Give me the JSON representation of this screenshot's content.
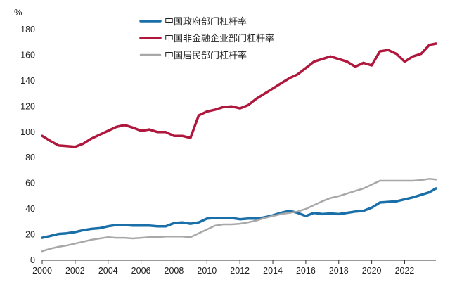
{
  "chart_data": {
    "type": "line",
    "title": "",
    "xlabel": "",
    "ylabel": "%",
    "ylim": [
      0,
      180
    ],
    "xlim": [
      2000,
      2023.9
    ],
    "y_ticks": [
      0,
      20,
      40,
      60,
      80,
      100,
      120,
      140,
      160,
      180
    ],
    "x_ticks": [
      2000,
      2002,
      2004,
      2006,
      2008,
      2010,
      2012,
      2014,
      2016,
      2018,
      2020,
      2022
    ],
    "grid": false,
    "legend_position": "top-center",
    "series": [
      {
        "name": "中国政府部门杠杆率",
        "color": "#1a6fa8",
        "line_width": 3.5,
        "points": [
          [
            2000.0,
            17.5
          ],
          [
            2000.5,
            19
          ],
          [
            2001.0,
            20.5
          ],
          [
            2001.5,
            21
          ],
          [
            2002.0,
            22
          ],
          [
            2002.5,
            23.5
          ],
          [
            2003.0,
            24.5
          ],
          [
            2003.5,
            25
          ],
          [
            2004.0,
            26.5
          ],
          [
            2004.5,
            27.5
          ],
          [
            2005.0,
            27.5
          ],
          [
            2005.5,
            27
          ],
          [
            2006.0,
            27
          ],
          [
            2006.5,
            27
          ],
          [
            2007.0,
            26.5
          ],
          [
            2007.5,
            26.5
          ],
          [
            2008.0,
            29
          ],
          [
            2008.5,
            29.5
          ],
          [
            2009.0,
            28.5
          ],
          [
            2009.5,
            29.5
          ],
          [
            2010.0,
            32.5
          ],
          [
            2010.5,
            33
          ],
          [
            2011.0,
            33
          ],
          [
            2011.5,
            33
          ],
          [
            2012.0,
            32
          ],
          [
            2012.5,
            32.5
          ],
          [
            2013.0,
            32.5
          ],
          [
            2013.5,
            33.5
          ],
          [
            2014.0,
            35
          ],
          [
            2014.5,
            37
          ],
          [
            2015.0,
            38.5
          ],
          [
            2015.5,
            37
          ],
          [
            2016.0,
            34.5
          ],
          [
            2016.5,
            37
          ],
          [
            2017.0,
            36
          ],
          [
            2017.5,
            36.5
          ],
          [
            2018.0,
            36
          ],
          [
            2018.5,
            37
          ],
          [
            2019.0,
            38
          ],
          [
            2019.5,
            38.5
          ],
          [
            2020.0,
            41
          ],
          [
            2020.5,
            45
          ],
          [
            2021.0,
            45.5
          ],
          [
            2021.5,
            46
          ],
          [
            2022.0,
            47.5
          ],
          [
            2022.5,
            49
          ],
          [
            2023.0,
            51
          ],
          [
            2023.5,
            53
          ],
          [
            2023.9,
            56
          ]
        ]
      },
      {
        "name": "中国非金融企业部门杠杆率",
        "color": "#b0173c",
        "line_width": 3.5,
        "points": [
          [
            2000.0,
            97
          ],
          [
            2000.5,
            93
          ],
          [
            2001.0,
            89.5
          ],
          [
            2001.5,
            89
          ],
          [
            2002.0,
            88.5
          ],
          [
            2002.5,
            91
          ],
          [
            2003.0,
            95
          ],
          [
            2003.5,
            98
          ],
          [
            2004.0,
            101
          ],
          [
            2004.5,
            104
          ],
          [
            2005.0,
            105.5
          ],
          [
            2005.5,
            103.5
          ],
          [
            2006.0,
            101
          ],
          [
            2006.5,
            102
          ],
          [
            2007.0,
            100
          ],
          [
            2007.5,
            100
          ],
          [
            2008.0,
            97
          ],
          [
            2008.5,
            97
          ],
          [
            2009.0,
            95.5
          ],
          [
            2009.5,
            113
          ],
          [
            2010.0,
            116
          ],
          [
            2010.5,
            117.5
          ],
          [
            2011.0,
            119.5
          ],
          [
            2011.5,
            120
          ],
          [
            2012.0,
            118.5
          ],
          [
            2012.5,
            121
          ],
          [
            2013.0,
            126
          ],
          [
            2013.5,
            130
          ],
          [
            2014.0,
            134
          ],
          [
            2014.5,
            138
          ],
          [
            2015.0,
            142
          ],
          [
            2015.5,
            145
          ],
          [
            2016.0,
            150
          ],
          [
            2016.5,
            155
          ],
          [
            2017.0,
            157
          ],
          [
            2017.5,
            159
          ],
          [
            2018.0,
            157
          ],
          [
            2018.5,
            155
          ],
          [
            2019.0,
            151
          ],
          [
            2019.5,
            154
          ],
          [
            2020.0,
            152
          ],
          [
            2020.5,
            163
          ],
          [
            2021.0,
            164
          ],
          [
            2021.5,
            161
          ],
          [
            2022.0,
            155
          ],
          [
            2022.5,
            159
          ],
          [
            2023.0,
            161
          ],
          [
            2023.5,
            168
          ],
          [
            2023.9,
            169
          ]
        ]
      },
      {
        "name": "中国居民部门杠杆率",
        "color": "#a8a8a8",
        "line_width": 2.5,
        "points": [
          [
            2000.0,
            7
          ],
          [
            2000.5,
            9
          ],
          [
            2001.0,
            10.5
          ],
          [
            2001.5,
            11.5
          ],
          [
            2002.0,
            13
          ],
          [
            2002.5,
            14.5
          ],
          [
            2003.0,
            16
          ],
          [
            2003.5,
            17
          ],
          [
            2004.0,
            18
          ],
          [
            2004.5,
            17.5
          ],
          [
            2005.0,
            17.5
          ],
          [
            2005.5,
            17
          ],
          [
            2006.0,
            17.5
          ],
          [
            2006.5,
            18
          ],
          [
            2007.0,
            18
          ],
          [
            2007.5,
            18.5
          ],
          [
            2008.0,
            18.5
          ],
          [
            2008.5,
            18.5
          ],
          [
            2009.0,
            18
          ],
          [
            2009.5,
            21
          ],
          [
            2010.0,
            24
          ],
          [
            2010.5,
            27
          ],
          [
            2011.0,
            28
          ],
          [
            2011.5,
            28
          ],
          [
            2012.0,
            28.5
          ],
          [
            2012.5,
            29.5
          ],
          [
            2013.0,
            31
          ],
          [
            2013.5,
            33
          ],
          [
            2014.0,
            34.5
          ],
          [
            2014.5,
            36
          ],
          [
            2015.0,
            37
          ],
          [
            2015.5,
            38
          ],
          [
            2016.0,
            40
          ],
          [
            2016.5,
            43
          ],
          [
            2017.0,
            46
          ],
          [
            2017.5,
            48.5
          ],
          [
            2018.0,
            50
          ],
          [
            2018.5,
            52
          ],
          [
            2019.0,
            54
          ],
          [
            2019.5,
            56
          ],
          [
            2020.0,
            59
          ],
          [
            2020.5,
            62
          ],
          [
            2021.0,
            62
          ],
          [
            2021.5,
            62
          ],
          [
            2022.0,
            62
          ],
          [
            2022.5,
            62
          ],
          [
            2023.0,
            62.5
          ],
          [
            2023.5,
            63.5
          ],
          [
            2023.9,
            63
          ]
        ]
      }
    ]
  }
}
